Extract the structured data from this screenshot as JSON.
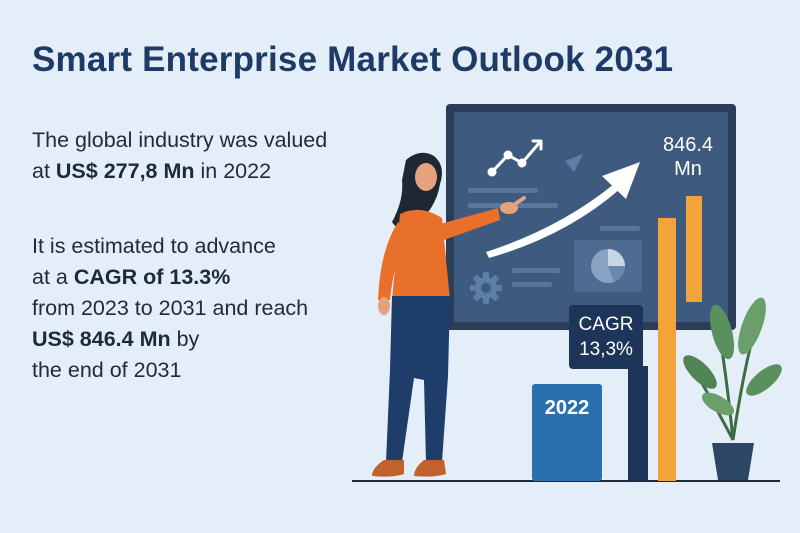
{
  "title": "Smart Enterprise Market Outlook 2031",
  "paragraph1": {
    "line1": "The global industry was valued",
    "line2_prefix": "at ",
    "line2_bold": "US$ 277,8 Mn",
    "line2_suffix": " in 2022"
  },
  "paragraph2": {
    "line1": "It is estimated to advance",
    "line2_prefix": "at a ",
    "line2_bold": "CAGR of 13.3%",
    "line3": "from 2023 to 2031 and reach",
    "line4_bold": "US$ 846.4 Mn",
    "line4_suffix": " by",
    "line5": "the end of 2031"
  },
  "illustration": {
    "board_value_line1": "846.4",
    "board_value_line2": "Mn",
    "cagr_label_line1": "CAGR",
    "cagr_label_line2": "13,3%",
    "bar_label": "2022"
  },
  "icons": [
    "trend-line-icon",
    "paper-plane-icon",
    "growth-arrow-icon",
    "pie-chart-icon",
    "gear-icon",
    "plant-icon"
  ],
  "colors": {
    "background": "#e3eef8",
    "title": "#1e3a66",
    "board": "#3e5a7e",
    "bar_blue": "#2a6fae",
    "bar_navy": "#1c3558",
    "bar_orange": "#f2a33a",
    "shirt": "#e8702a",
    "pants": "#1f3d6b"
  }
}
